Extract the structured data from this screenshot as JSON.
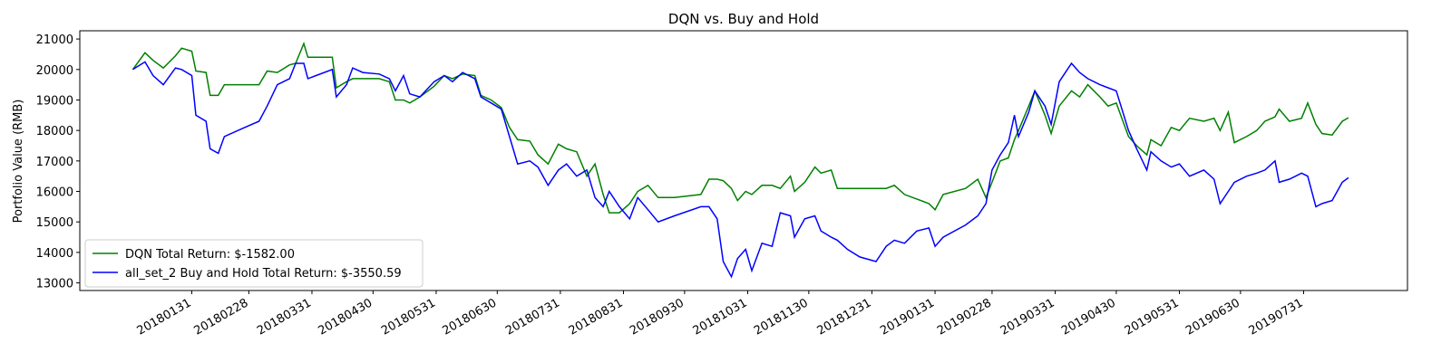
{
  "chart_data": {
    "type": "line",
    "title": "DQN vs. Buy and Hold",
    "ylabel": "Portfolio Value (RMB)",
    "legend": "lower left",
    "x": [
      "20180102",
      "20180108",
      "20180112",
      "20180117",
      "20180123",
      "20180126",
      "20180131",
      "20180202",
      "20180207",
      "20180209",
      "20180213",
      "20180216",
      "20180226",
      "20180305",
      "20180309",
      "20180314",
      "20180320",
      "20180323",
      "20180327",
      "20180329",
      "20180402",
      "20180410",
      "20180412",
      "20180417",
      "20180420",
      "20180425",
      "20180503",
      "20180508",
      "20180511",
      "20180515",
      "20180518",
      "20180523",
      "20180530",
      "20180604",
      "20180608",
      "20180613",
      "20180619",
      "20180622",
      "20180627",
      "20180702",
      "20180706",
      "20180710",
      "20180716",
      "20180720",
      "20180725",
      "20180730",
      "20180803",
      "20180808",
      "20180813",
      "20180817",
      "20180821",
      "20180824",
      "20180829",
      "20180903",
      "20180907",
      "20180912",
      "20180917",
      "20180925",
      "20181008",
      "20181012",
      "20181016",
      "20181019",
      "20181023",
      "20181026",
      "20181030",
      "20181102",
      "20181107",
      "20181112",
      "20181116",
      "20181121",
      "20181123",
      "20181128",
      "20181203",
      "20181206",
      "20181211",
      "20181214",
      "20181219",
      "20181225",
      "20190102",
      "20190107",
      "20190111",
      "20190116",
      "20190122",
      "20190128",
      "20190131",
      "20190204",
      "20190215",
      "20190221",
      "20190225",
      "20190228",
      "20190304",
      "20190308",
      "20190311",
      "20190313",
      "20190318",
      "20190321",
      "20190326",
      "20190329",
      "20190402",
      "20190408",
      "20190412",
      "20190416",
      "20190422",
      "20190426",
      "20190430",
      "20190506",
      "20190510",
      "20190515",
      "20190517",
      "20190522",
      "20190527",
      "20190531",
      "20190605",
      "20190612",
      "20190617",
      "20190620",
      "20190624",
      "20190627",
      "20190703",
      "20190708",
      "20190712",
      "20190717",
      "20190719",
      "20190724",
      "20190730",
      "20190802",
      "20190806",
      "20190809",
      "20190814",
      "20190819",
      "20190822"
    ],
    "series": [
      {
        "name": "DQN Total Return: $-1582.00",
        "color": "#008000",
        "values": [
          20000,
          20550,
          20300,
          20050,
          20450,
          20700,
          20600,
          19950,
          19900,
          19150,
          19150,
          19500,
          19500,
          19500,
          19950,
          19900,
          20150,
          20200,
          20850,
          20400,
          20400,
          20400,
          19400,
          19600,
          19700,
          19700,
          19700,
          19600,
          19000,
          19000,
          18900,
          19100,
          19450,
          19800,
          19700,
          19850,
          19800,
          19150,
          19000,
          18750,
          18100,
          17700,
          17650,
          17200,
          16900,
          17550,
          17400,
          17300,
          16500,
          16900,
          15900,
          15300,
          15300,
          15600,
          16000,
          16200,
          15800,
          15800,
          15900,
          16400,
          16400,
          16350,
          16100,
          15700,
          16000,
          15900,
          16200,
          16200,
          16100,
          16500,
          16000,
          16300,
          16800,
          16600,
          16700,
          16100,
          16100,
          16100,
          16100,
          16100,
          16200,
          15900,
          15750,
          15600,
          15400,
          15900,
          16100,
          16400,
          15800,
          16300,
          17000,
          17100,
          17700,
          18000,
          18800,
          19300,
          18500,
          17900,
          18800,
          19300,
          19100,
          19500,
          19100,
          18800,
          18900,
          17800,
          17500,
          17200,
          17700,
          17500,
          18100,
          18000,
          18400,
          18300,
          18400,
          18000,
          18600,
          17600,
          17800,
          18000,
          18300,
          18450,
          18700,
          18300,
          18400,
          18900,
          18200,
          17900,
          17850,
          18300,
          18418
        ]
      },
      {
        "name": "all_set_2 Buy and Hold Total Return: $-3550.59",
        "color": "#0000ff",
        "values": [
          20000,
          20250,
          19800,
          19500,
          20050,
          20000,
          19800,
          18500,
          18300,
          17400,
          17250,
          17800,
          18100,
          18300,
          18800,
          19500,
          19700,
          20200,
          20200,
          19700,
          19800,
          20000,
          19100,
          19500,
          20050,
          19900,
          19850,
          19700,
          19300,
          19800,
          19200,
          19100,
          19600,
          19800,
          19600,
          19900,
          19700,
          19100,
          18900,
          18700,
          17800,
          16900,
          17000,
          16800,
          16200,
          16700,
          16900,
          16500,
          16700,
          15800,
          15500,
          16000,
          15500,
          15100,
          15800,
          15400,
          15000,
          15200,
          15500,
          15500,
          15100,
          13700,
          13200,
          13800,
          14100,
          13400,
          14300,
          14200,
          15300,
          15200,
          14500,
          15100,
          15200,
          14700,
          14500,
          14400,
          14100,
          13850,
          13700,
          14200,
          14400,
          14300,
          14700,
          14800,
          14200,
          14500,
          14900,
          15200,
          15600,
          16700,
          17200,
          17600,
          18500,
          17800,
          18600,
          19300,
          18800,
          18200,
          19600,
          20200,
          19900,
          19700,
          19500,
          19400,
          19300,
          18000,
          17400,
          16700,
          17300,
          17000,
          16800,
          16900,
          16500,
          16700,
          16400,
          15600,
          16000,
          16300,
          16500,
          16600,
          16700,
          17000,
          16300,
          16400,
          16600,
          16500,
          15500,
          15600,
          15700,
          16300,
          16449.41
        ]
      }
    ],
    "xlim": [
      "20171207",
      "20190920"
    ],
    "xticks": [
      "20180131",
      "20180228",
      "20180331",
      "20180430",
      "20180531",
      "20180630",
      "20180731",
      "20180831",
      "20180930",
      "20181031",
      "20181130",
      "20181231",
      "20190131",
      "20190228",
      "20190331",
      "20190430",
      "20190531",
      "20190630",
      "20190731"
    ],
    "ylim": [
      12750,
      21270
    ],
    "yticks": [
      13000,
      14000,
      15000,
      16000,
      17000,
      18000,
      19000,
      20000,
      21000
    ]
  }
}
